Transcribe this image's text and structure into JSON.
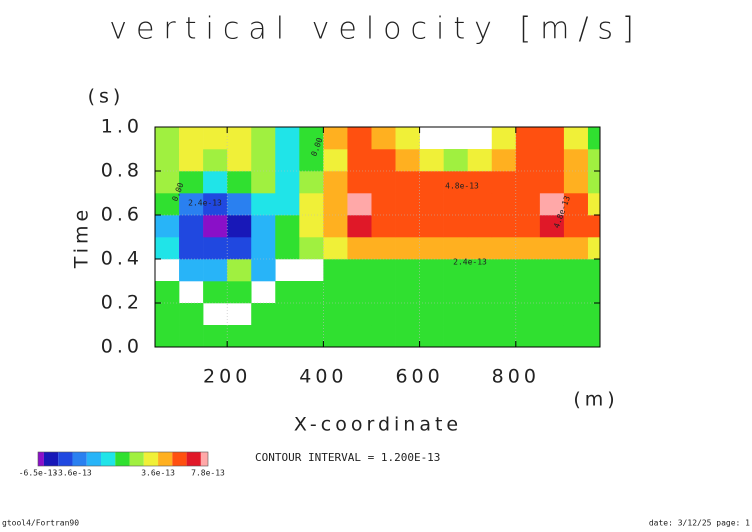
{
  "chart_data": {
    "type": "contour",
    "title": "vertical velocity [m/s]",
    "x_label": "X-coordinate",
    "x_unit": "(m)",
    "y_label": "Time",
    "y_unit": "(s)",
    "xlim": [
      50,
      975
    ],
    "ylim": [
      0,
      1
    ],
    "xticks": [
      200,
      400,
      600,
      800
    ],
    "yticks": [
      {
        "value": 0,
        "label": "0.0"
      },
      0.2,
      0.4,
      0.6,
      0.8,
      {
        "value": 1,
        "label": "1.0"
      }
    ],
    "grid": true,
    "x": [
      75,
      125,
      175,
      225,
      275,
      325,
      375,
      425,
      475,
      525,
      575,
      625,
      675,
      725,
      775,
      825,
      875,
      925,
      975
    ],
    "y": [
      0.05,
      0.15,
      0.25,
      0.35,
      0.45,
      0.55,
      0.65,
      0.75,
      0.85,
      0.95
    ],
    "z": [
      [
        0,
        0,
        0,
        0,
        0,
        0,
        0,
        0,
        0,
        0,
        0,
        0,
        0,
        0,
        0,
        0,
        0,
        0,
        0
      ],
      [
        0,
        0,
        null,
        null,
        0,
        0,
        0,
        0,
        0,
        0,
        0,
        0,
        0,
        0,
        0,
        0,
        0,
        0,
        0
      ],
      [
        0,
        null,
        0,
        0,
        null,
        0,
        0,
        0,
        0,
        0,
        0,
        0,
        0,
        0,
        0,
        0,
        0,
        0,
        0
      ],
      [
        null,
        -2e-13,
        -1.5e-13,
        1.5e-13,
        -1.5e-13,
        null,
        null,
        1e-13,
        1e-13,
        1e-13,
        1e-13,
        1e-13,
        1e-13,
        1e-13,
        1e-13,
        1e-13,
        1e-13,
        1e-13,
        1e-13
      ],
      [
        -1e-13,
        -4e-13,
        -4.5e-13,
        -4e-13,
        -2e-13,
        1e-13,
        2e-13,
        3e-13,
        4e-13,
        4.2e-13,
        4.2e-13,
        4.2e-13,
        4.2e-13,
        4.2e-13,
        4.2e-13,
        4.2e-13,
        4.2e-13,
        4e-13,
        2.5e-13
      ],
      [
        -1.5e-13,
        -4e-13,
        -6.5e-13,
        -5e-13,
        -2e-13,
        1e-13,
        3e-13,
        4.5e-13,
        6.5e-13,
        5.5e-13,
        5.3e-13,
        5.3e-13,
        5.3e-13,
        5.3e-13,
        5.3e-13,
        5.3e-13,
        6.5e-13,
        5.5e-13,
        5e-13
      ],
      [
        5e-14,
        -2.5e-13,
        -4e-13,
        -3.5e-13,
        -1e-13,
        -5e-14,
        2.6e-13,
        4.5e-13,
        7.8e-13,
        5.5e-13,
        5.3e-13,
        5.3e-13,
        5.3e-13,
        5.3e-13,
        5.3e-13,
        5.3e-13,
        7.6e-13,
        5.2e-13,
        3.5e-13
      ],
      [
        1.5e-13,
        5e-14,
        -1e-13,
        5e-14,
        1.5e-13,
        -5e-14,
        1.5e-13,
        4e-13,
        5e-13,
        5e-13,
        5e-13,
        5e-13,
        5e-13,
        5e-13,
        5e-13,
        5e-13,
        5e-13,
        4e-13,
        2e-13
      ],
      [
        2e-13,
        2.5e-13,
        1.5e-13,
        2.5e-13,
        2e-13,
        -5e-14,
        1e-13,
        3e-13,
        5e-13,
        5e-13,
        4e-13,
        3e-13,
        2e-13,
        3e-13,
        4e-13,
        5e-13,
        5e-13,
        4e-13,
        2e-13
      ],
      [
        1.5e-13,
        2.5e-13,
        3e-13,
        2.6e-13,
        1.5e-13,
        -8e-14,
        1e-13,
        4e-13,
        5e-13,
        4e-13,
        3e-13,
        null,
        null,
        null,
        3e-13,
        5e-13,
        5e-13,
        3e-13,
        1e-13
      ]
    ],
    "levels": [
      -6e-13,
      -4.8e-13,
      -3.6e-13,
      -2.4e-13,
      -1.2e-13,
      0,
      1.2e-13,
      2.4e-13,
      3.6e-13,
      4.8e-13,
      6e-13,
      7.2e-13
    ],
    "colors": [
      "#8a10c8",
      "#1818b8",
      "#2048e0",
      "#2a80f0",
      "#28b4f8",
      "#20e4e8",
      "#30e030",
      "#a0f040",
      "#f0f038",
      "#ffb020",
      "#ff5010",
      "#e01828",
      "#ffa8a8"
    ],
    "zlim": [
      -6.5e-13,
      7.8e-13
    ],
    "colorbar_ticks": [
      {
        "value": -6.5e-13,
        "label": "-6.5e-13"
      },
      {
        "value": -3.6e-13,
        "label": "-3.6e-13"
      },
      {
        "value": 3.6e-13,
        "label": "3.6e-13"
      },
      {
        "value": 7.8e-13,
        "label": "7.8e-13"
      }
    ],
    "contour_labels": [
      "0.00",
      "2.4e-13",
      "0.00",
      "4.8e-13",
      "2.4e-13",
      "4.8e-13"
    ],
    "contour_interval": "CONTOUR INTERVAL = 1.200E-13",
    "footer_left": "gtool4/Fortran90",
    "footer_right": "date: 3/12/25 page: 1"
  }
}
